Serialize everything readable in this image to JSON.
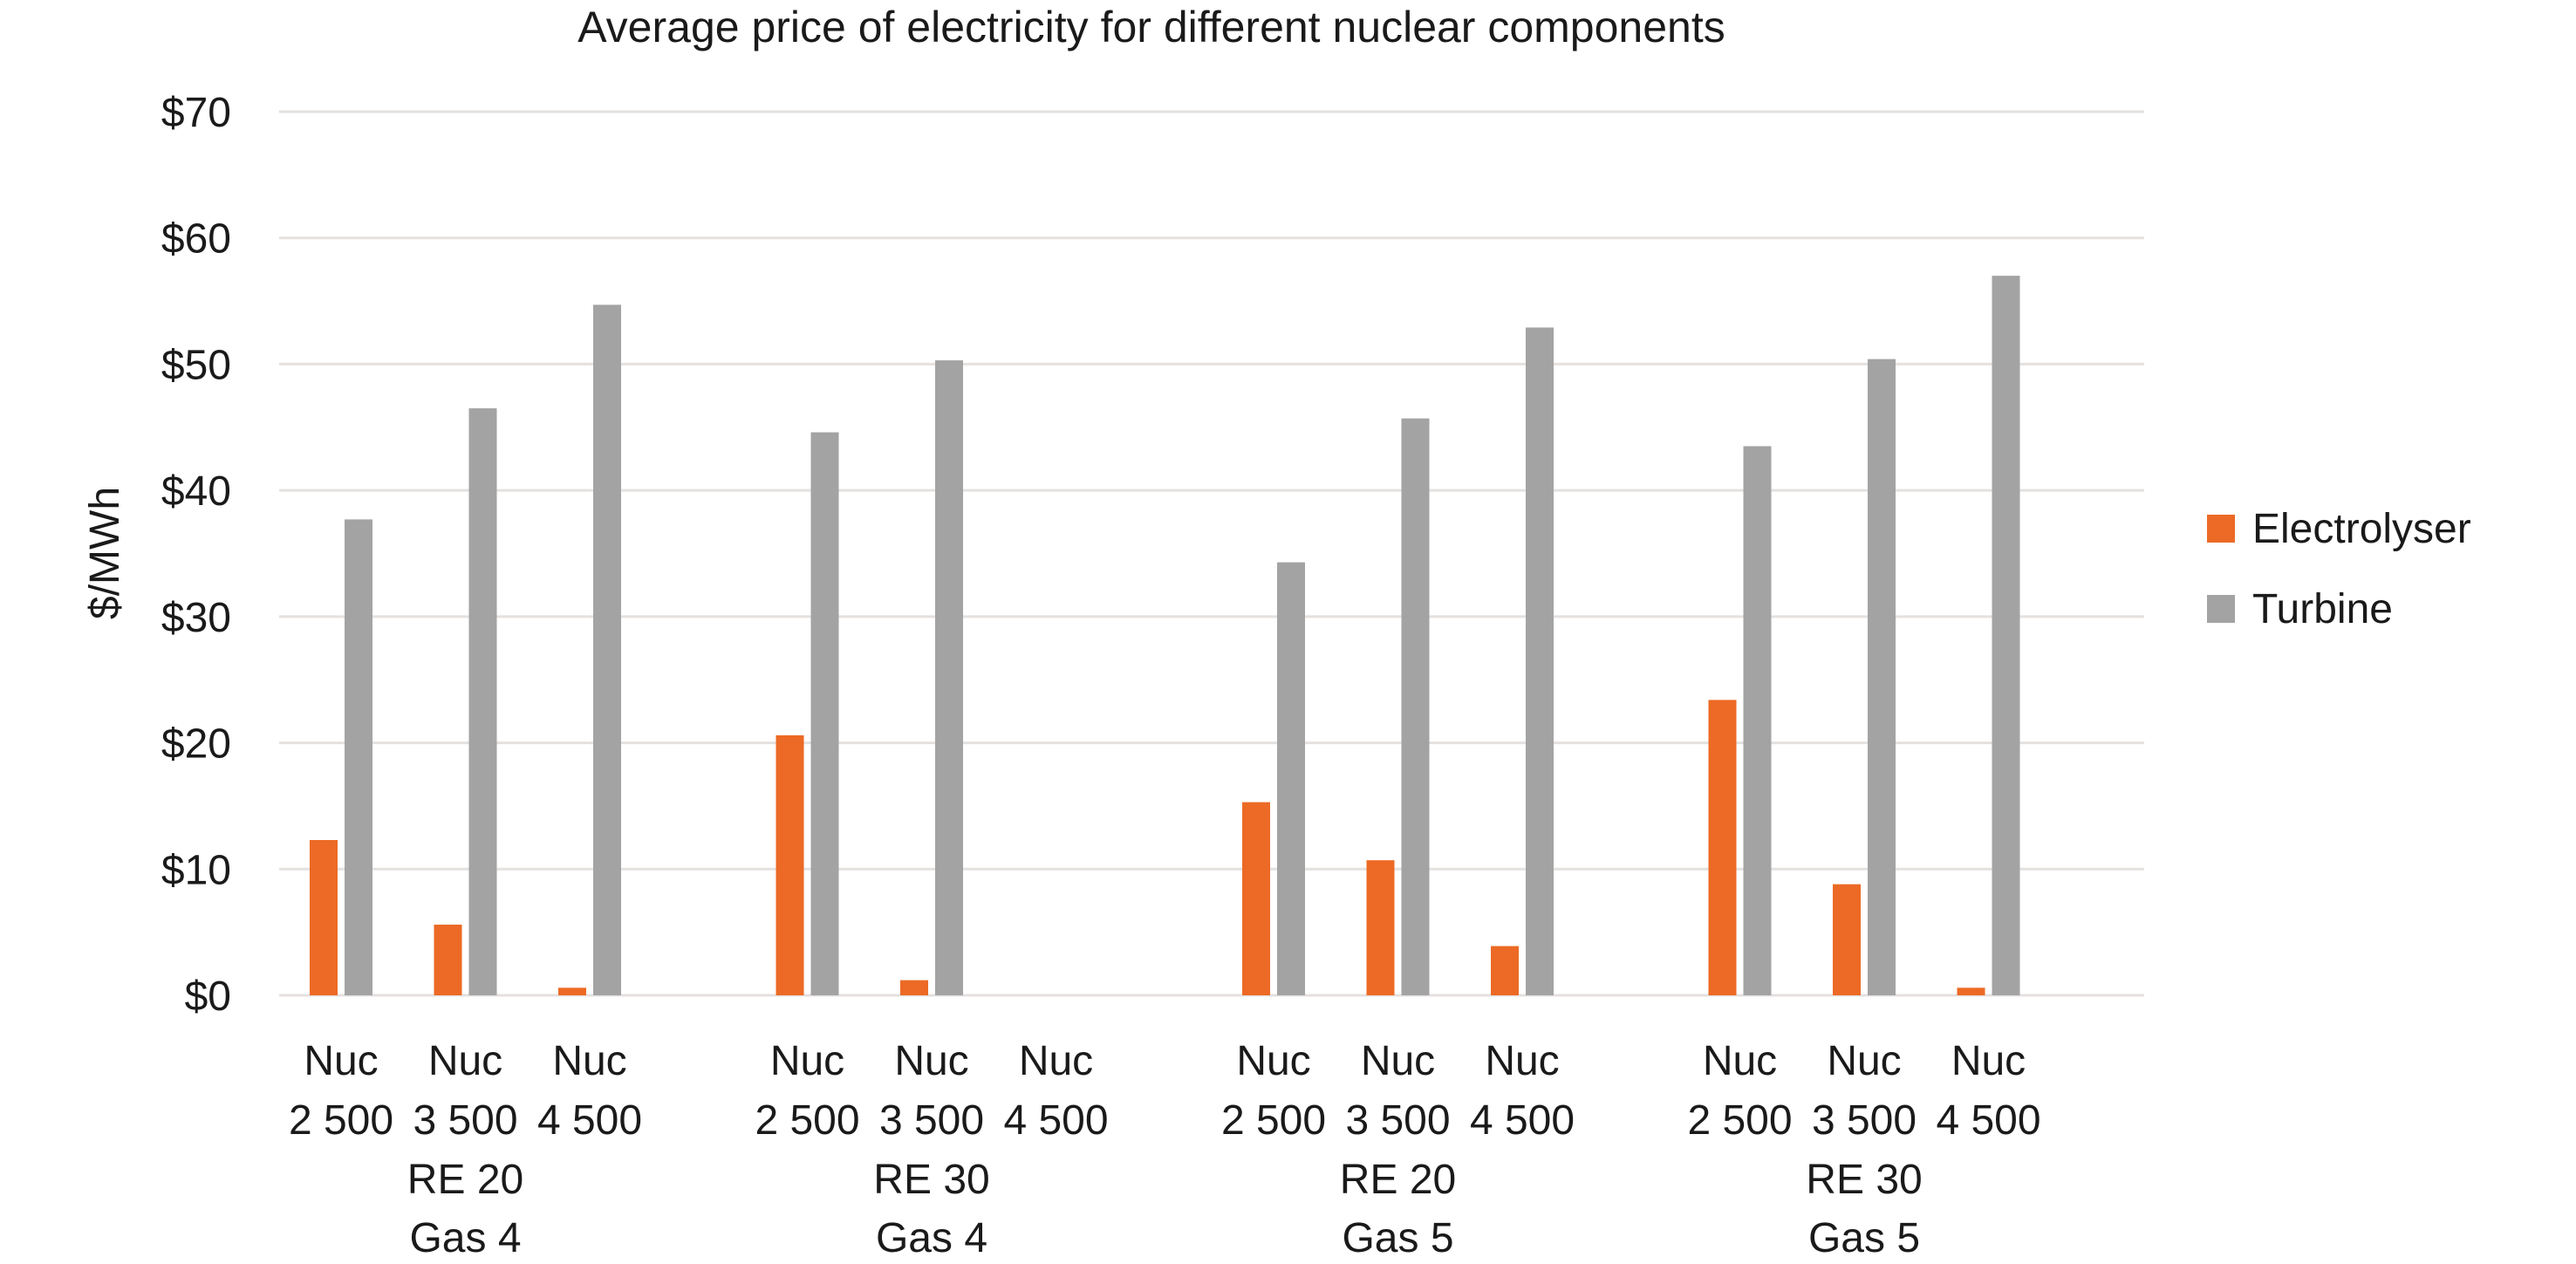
{
  "chart_data": {
    "type": "bar",
    "title": "Average price of electricity for different nuclear components",
    "xlabel": "",
    "ylabel": "$/MWh",
    "ylim": [
      0,
      70
    ],
    "yticks": [
      0,
      10,
      20,
      30,
      40,
      50,
      60,
      70
    ],
    "ytick_labels": [
      "$0",
      "$10",
      "$20",
      "$30",
      "$40",
      "$50",
      "$60",
      "$70"
    ],
    "grid": true,
    "legend_position": "right",
    "groups": [
      {
        "line1": "RE 20",
        "line2": "Gas 4",
        "categories": [
          [
            "Nuc",
            "2 500"
          ],
          [
            "Nuc",
            "3 500"
          ],
          [
            "Nuc",
            "4 500"
          ]
        ]
      },
      {
        "line1": "RE 30",
        "line2": "Gas 4",
        "categories": [
          [
            "Nuc",
            "2 500"
          ],
          [
            "Nuc",
            "3 500"
          ],
          [
            "Nuc",
            "4 500"
          ]
        ]
      },
      {
        "line1": "RE 20",
        "line2": "Gas 5",
        "categories": [
          [
            "Nuc",
            "2 500"
          ],
          [
            "Nuc",
            "3 500"
          ],
          [
            "Nuc",
            "4 500"
          ]
        ]
      },
      {
        "line1": "RE 30",
        "line2": "Gas 5",
        "categories": [
          [
            "Nuc",
            "2 500"
          ],
          [
            "Nuc",
            "3 500"
          ],
          [
            "Nuc",
            "4 500"
          ]
        ]
      }
    ],
    "categories": [
      "Nuc 2 500 | RE 20 Gas 4",
      "Nuc 3 500 | RE 20 Gas 4",
      "Nuc 4 500 | RE 20 Gas 4",
      "Nuc 2 500 | RE 30 Gas 4",
      "Nuc 3 500 | RE 30 Gas 4",
      "Nuc 4 500 | RE 30 Gas 4",
      "Nuc 2 500 | RE 20 Gas 5",
      "Nuc 3 500 | RE 20 Gas 5",
      "Nuc 4 500 | RE 20 Gas 5",
      "Nuc 2 500 | RE 30 Gas 5",
      "Nuc 3 500 | RE 30 Gas 5",
      "Nuc 4 500 | RE 30 Gas 5"
    ],
    "series": [
      {
        "name": "Electrolyser",
        "color": "#ec6a25",
        "values": [
          12.3,
          5.6,
          0.6,
          20.6,
          1.2,
          null,
          15.3,
          10.7,
          3.9,
          23.4,
          8.8,
          0.6
        ]
      },
      {
        "name": "Turbine",
        "color": "#a3a3a3",
        "values": [
          37.7,
          46.5,
          54.7,
          44.6,
          50.3,
          null,
          34.3,
          45.7,
          52.9,
          43.5,
          50.4,
          57.0
        ]
      }
    ]
  }
}
